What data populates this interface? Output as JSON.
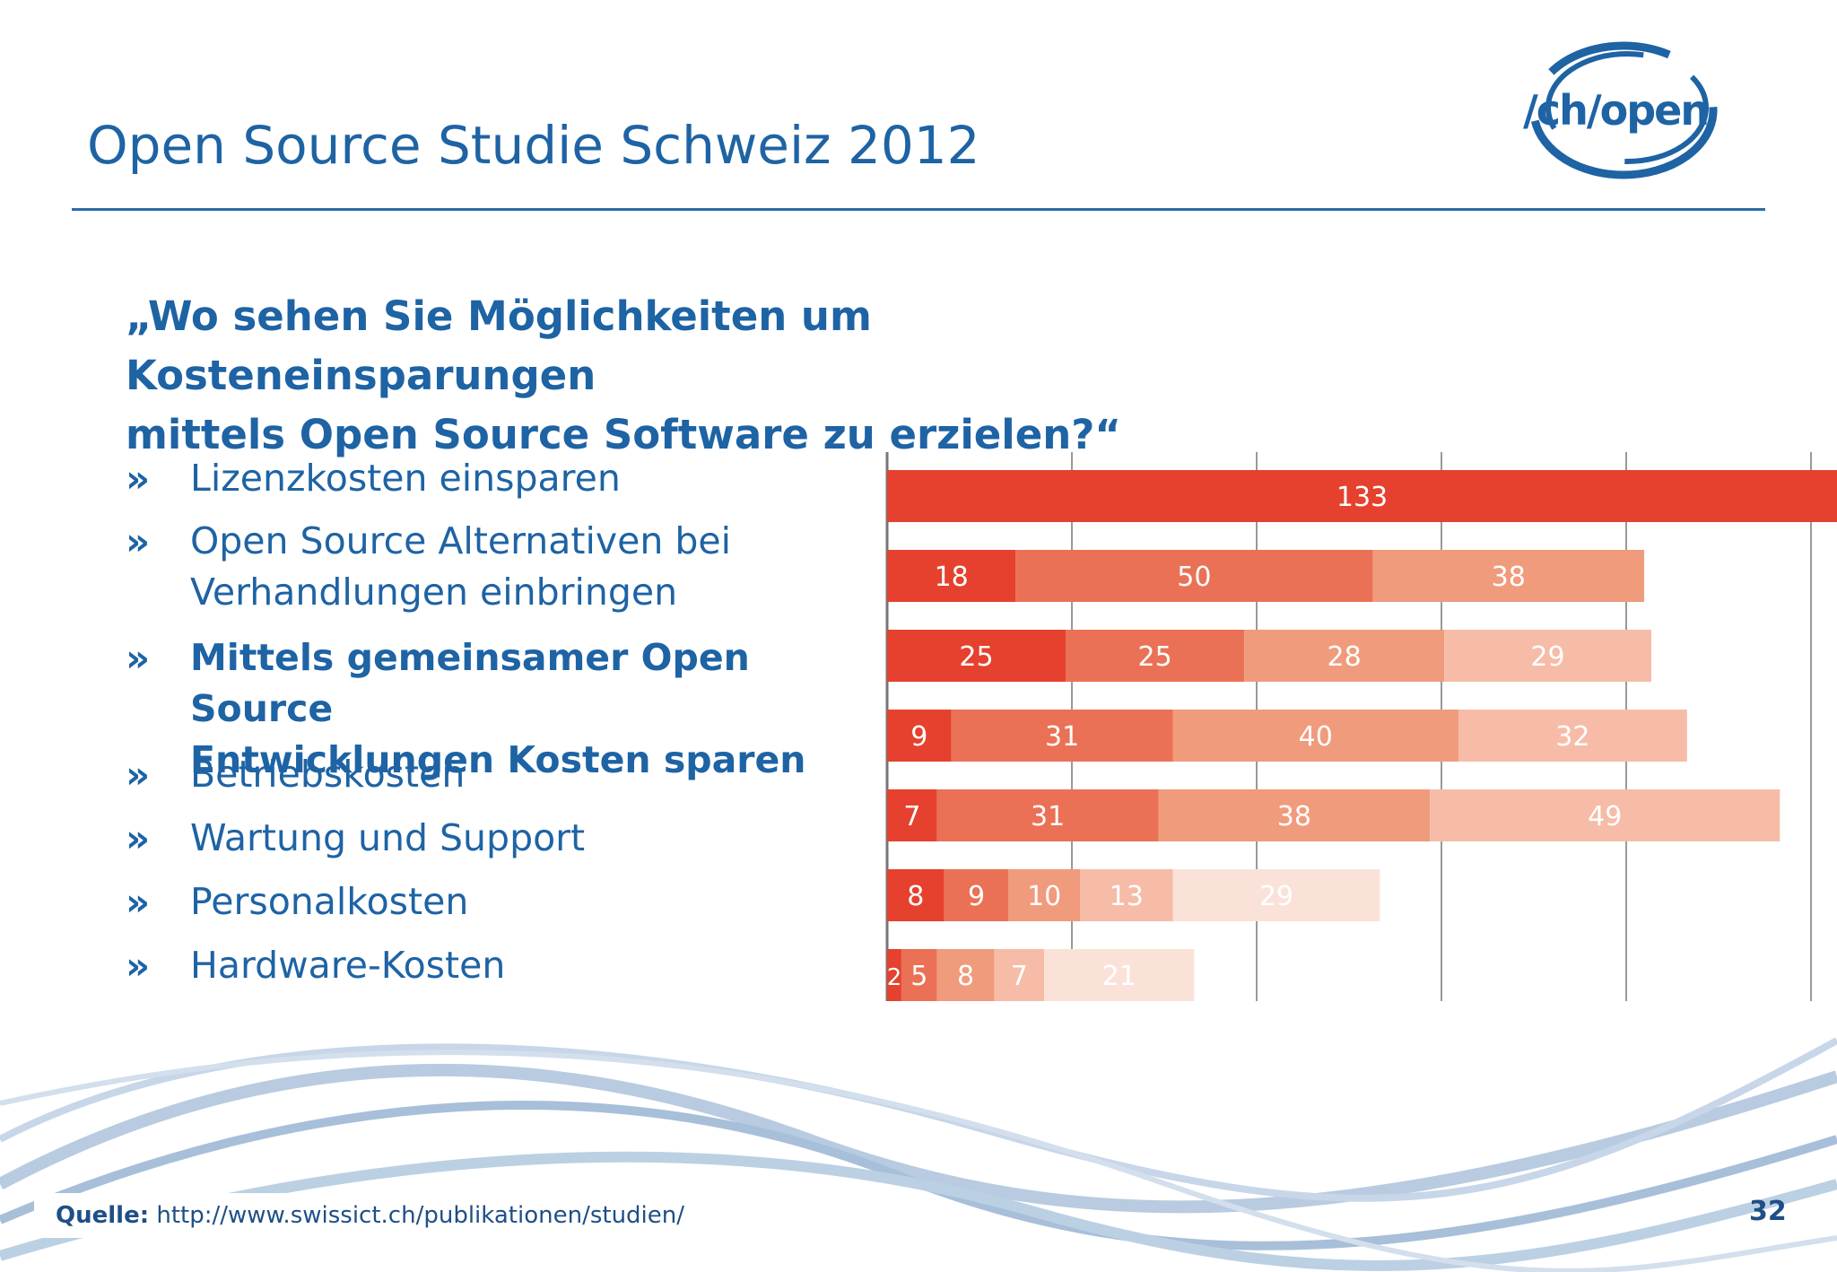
{
  "header": {
    "title": "Open Source Studie Schweiz 2012",
    "logo_text": "/ch/open"
  },
  "question": {
    "line1": "„Wo sehen Sie Möglichkeiten um Kosteneinsparungen",
    "line2": "mittels Open Source Software zu erzielen?“"
  },
  "bullet_glyph": "»",
  "bullets": [
    {
      "line1": "Lizenzkosten einsparen",
      "line2": ""
    },
    {
      "line1": "Open Source Alternativen bei",
      "line2": "Verhandlungen einbringen"
    },
    {
      "line1": "Mittels gemeinsamer Open Source",
      "line2": "Entwicklungen Kosten sparen"
    },
    {
      "line1": "Betriebskosten",
      "line2": ""
    },
    {
      "line1": "Wartung und Support",
      "line2": ""
    },
    {
      "line1": "Personalkosten",
      "line2": ""
    },
    {
      "line1": "Hardware-Kosten",
      "line2": ""
    }
  ],
  "chart_data": {
    "type": "bar",
    "orientation": "horizontal",
    "stacked": true,
    "grid": true,
    "categories": [
      "Lizenzkosten einsparen",
      "Open Source Alternativen bei Verhandlungen einbringen",
      "Mittels gemeinsamer Open Source Entwicklungen Kosten sparen",
      "Betriebskosten",
      "Wartung und Support",
      "Personalkosten",
      "Hardware-Kosten"
    ],
    "rows": [
      [
        133
      ],
      [
        18,
        50,
        38
      ],
      [
        25,
        25,
        28,
        29
      ],
      [
        9,
        31,
        40,
        32
      ],
      [
        7,
        31,
        38,
        49
      ],
      [
        8,
        9,
        10,
        13,
        29
      ],
      [
        2,
        5,
        8,
        7,
        21
      ]
    ],
    "segment_colors": [
      "#e5412e",
      "#ea7155",
      "#f09b7c",
      "#f6bca7",
      "#fbe2d8"
    ],
    "xlim": [
      0,
      133
    ]
  },
  "footer": {
    "source_label": "Quelle:",
    "source_url": "http://www.swissict.ch/publikationen/studien/",
    "page_number": "32"
  }
}
